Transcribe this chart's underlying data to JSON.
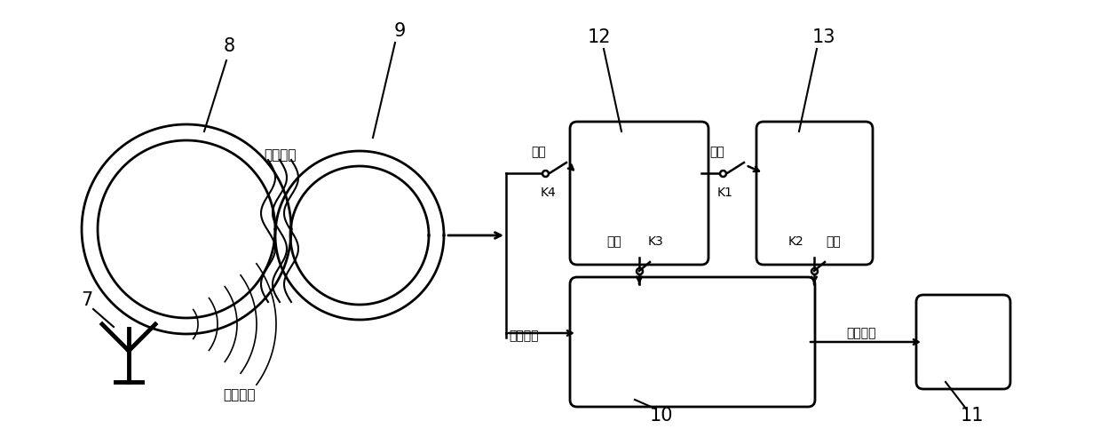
{
  "bg_color": "#ffffff",
  "line_color": "#000000",
  "font_size_label": 10,
  "font_size_number": 15,
  "font_family": "SimHei",
  "label_8": "8",
  "label_9": "9",
  "label_7": "7",
  "label_10": "10",
  "label_11": "11",
  "label_12": "12",
  "label_13": "13",
  "text_coil": "线圈耦合",
  "text_wireless": "无线传输",
  "text_power": "电能",
  "text_charge": "充电",
  "text_K4": "K4",
  "text_K1": "K1",
  "text_K3": "K3",
  "text_K2": "K2",
  "text_supply1": "供电",
  "text_supply2": "供电",
  "text_audio": "音频信号",
  "text_stim": "刺激电流"
}
